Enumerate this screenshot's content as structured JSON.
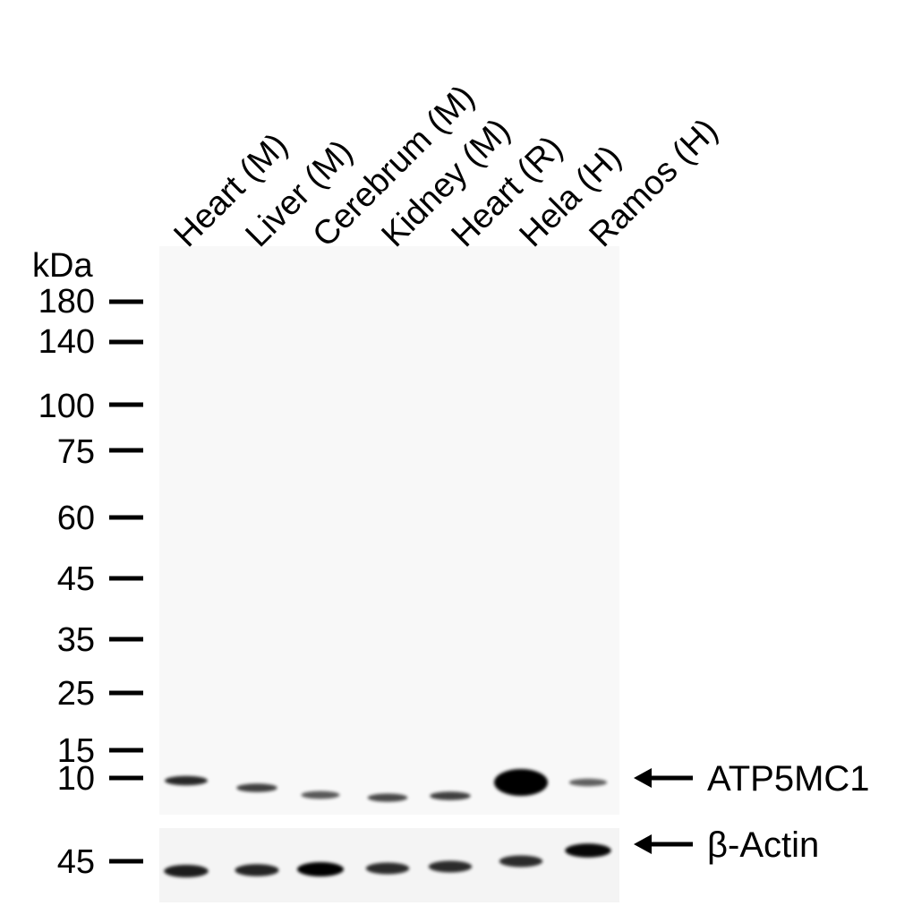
{
  "lanes": [
    "Heart (M)",
    "Liver (M)",
    "Cerebrum (M)",
    "Kidney (M)",
    "Heart (R)",
    "Hela (H)",
    "Ramos (H)"
  ],
  "ladder": {
    "unit": "kDa",
    "markers": [
      "180",
      "140",
      "100",
      "75",
      "60",
      "45",
      "35",
      "25",
      "15",
      "10"
    ],
    "loading_control_marker": "45"
  },
  "targets": {
    "primary": "ATP5MC1",
    "loading_control": "β-Actin"
  },
  "band_intensity": {
    "ATP5MC1": [
      0.75,
      0.6,
      0.45,
      0.55,
      0.6,
      1.0,
      0.4
    ],
    "beta_actin": [
      0.8,
      0.75,
      1.0,
      0.7,
      0.7,
      0.7,
      0.95
    ]
  },
  "colors": {
    "band": "#000000",
    "membrane": "#f8f8f8"
  }
}
